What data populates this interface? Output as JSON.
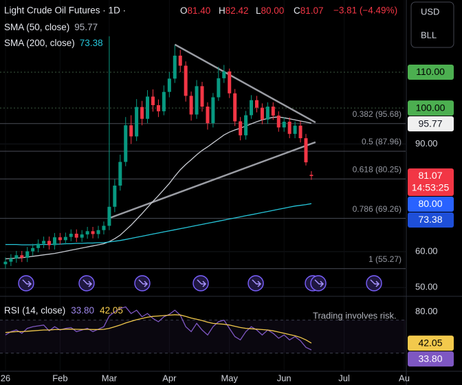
{
  "chart_data": {
    "type": "candlestick",
    "title": "Light Crude Oil Futures · 1D ·",
    "header_values": [
      {
        "key": "O",
        "value": "81.40"
      },
      {
        "key": "H",
        "value": "82.42"
      },
      {
        "key": "L",
        "value": "80.00"
      },
      {
        "key": "C",
        "value": "81.07"
      }
    ],
    "change": "−3.81 (−4.49%)",
    "countdown": "14:53:25",
    "currency_buttons": [
      "USD",
      "BLL"
    ],
    "disclaimer": "Trading involves risk.",
    "x": [
      0,
      1,
      2,
      3,
      4,
      5,
      6,
      7,
      8,
      9,
      10,
      11,
      12,
      13,
      14,
      15,
      16,
      17,
      18,
      19,
      20,
      21,
      22,
      23,
      24,
      25,
      26,
      27,
      28,
      29,
      30,
      31,
      32,
      33,
      34,
      35,
      36,
      37,
      38,
      39,
      40,
      41,
      42,
      43,
      44,
      45,
      46,
      47,
      48,
      49,
      50,
      51,
      52,
      53,
      54,
      55,
      56
    ],
    "xlim": [
      -1,
      73.25
    ],
    "xticks": [
      {
        "value": 0,
        "label": "26"
      },
      {
        "value": 10,
        "label": "Feb"
      },
      {
        "value": 19,
        "label": "Mar"
      },
      {
        "value": 30,
        "label": "Apr"
      },
      {
        "value": 41,
        "label": "May"
      },
      {
        "value": 51,
        "label": "Jun"
      },
      {
        "value": 62,
        "label": "Jul"
      },
      {
        "value": 73,
        "label": "Au"
      }
    ],
    "ylim": [
      47.75,
      130.1
    ],
    "yticks": [
      {
        "value": 50,
        "label": "50.00"
      },
      {
        "value": 60,
        "label": "60.00"
      },
      {
        "value": 90,
        "label": "90.00"
      }
    ],
    "series": [
      {
        "up_color": "#089981",
        "down_color": "#f23645",
        "open": [
          56.5,
          57.2,
          58.1,
          59.0,
          58.3,
          60.1,
          61.0,
          62.2,
          63.0,
          61.8,
          64.0,
          63.2,
          64.1,
          65.0,
          63.9,
          64.8,
          65.7,
          64.9,
          66.0,
          67.2,
          72.5,
          78.4,
          85.0,
          95.2,
          92.1,
          100.3,
          97.0,
          103.2,
          100.8,
          99.1,
          104.5,
          108.2,
          114.6,
          111.8,
          103.4,
          98.2,
          106.1,
          100.4,
          95.8,
          103.0,
          108.3,
          110.2,
          104.1,
          96.3,
          92.4,
          98.0,
          102.2,
          100.1,
          96.8,
          100.4,
          97.9,
          94.6,
          96.2,
          92.8,
          95.1,
          91.6,
          81.4
        ],
        "high": [
          58.4,
          59.3,
          60.2,
          60.2,
          61.3,
          62.2,
          63.4,
          64.2,
          64.2,
          65.2,
          65.2,
          65.3,
          66.2,
          66.2,
          66.0,
          66.9,
          66.9,
          67.2,
          68.4,
          120.0,
          80.2,
          87.0,
          97.5,
          98.0,
          102.5,
          102.0,
          105.0,
          105.2,
          102.4,
          106.3,
          110.0,
          117.5,
          116.2,
          113.0,
          104.6,
          107.8,
          107.3,
          101.6,
          104.2,
          111.5,
          112.0,
          111.0,
          105.3,
          97.5,
          99.2,
          103.6,
          103.4,
          101.3,
          101.6,
          101.6,
          99.1,
          97.4,
          97.4,
          96.3,
          96.3,
          92.8,
          82.42
        ],
        "low": [
          55.3,
          56.0,
          56.9,
          57.1,
          57.1,
          58.9,
          59.8,
          61.0,
          60.6,
          60.6,
          62.0,
          62.0,
          62.9,
          62.7,
          62.7,
          63.6,
          63.7,
          63.7,
          64.8,
          66.0,
          71.0,
          77.0,
          83.8,
          90.0,
          90.8,
          95.2,
          95.8,
          99.0,
          97.5,
          98.0,
          103.0,
          107.0,
          110.0,
          101.8,
          96.5,
          97.0,
          99.0,
          94.0,
          94.6,
          102.0,
          107.0,
          102.8,
          95.0,
          91.0,
          91.2,
          97.0,
          98.8,
          95.5,
          95.6,
          96.7,
          93.4,
          93.4,
          91.6,
          91.6,
          90.4,
          84.0,
          80.0
        ],
        "close": [
          57.2,
          58.1,
          59.0,
          58.3,
          60.1,
          61.0,
          62.2,
          63.0,
          61.8,
          64.0,
          63.2,
          64.1,
          65.0,
          63.9,
          64.8,
          65.7,
          64.9,
          66.0,
          67.2,
          72.5,
          78.4,
          85.0,
          95.2,
          92.1,
          100.3,
          97.0,
          103.2,
          100.8,
          99.1,
          104.5,
          108.2,
          114.6,
          111.8,
          103.4,
          98.2,
          106.1,
          100.4,
          95.8,
          103.0,
          108.3,
          110.2,
          104.1,
          96.3,
          92.4,
          98.0,
          102.2,
          100.1,
          96.8,
          100.4,
          97.9,
          94.6,
          96.2,
          92.8,
          95.1,
          91.6,
          84.88,
          81.07
        ]
      },
      {
        "name": "SMA (50, close)",
        "color": "#c8cbd2",
        "values": [
          58.0,
          58.1,
          58.2,
          58.3,
          58.5,
          58.7,
          58.9,
          59.1,
          59.3,
          59.5,
          59.8,
          60.1,
          60.4,
          60.7,
          61.0,
          61.3,
          61.6,
          61.9,
          62.2,
          62.8,
          63.6,
          64.6,
          66.0,
          67.4,
          69.0,
          70.6,
          72.3,
          74.0,
          75.6,
          77.3,
          79.0,
          81.0,
          82.8,
          84.3,
          85.6,
          87.0,
          88.2,
          89.2,
          90.3,
          91.4,
          92.5,
          93.3,
          93.9,
          94.4,
          95.0,
          95.6,
          96.2,
          96.7,
          97.1,
          97.4,
          97.5,
          97.3,
          97.0,
          96.7,
          96.4,
          96.1,
          95.77
        ]
      },
      {
        "name": "SMA (200, close)",
        "color": "#26c6da",
        "values": [
          62.0,
          62.0,
          62.0,
          61.9,
          61.9,
          61.9,
          62.0,
          62.0,
          62.0,
          62.1,
          62.1,
          62.2,
          62.2,
          62.3,
          62.3,
          62.4,
          62.4,
          62.5,
          62.5,
          62.7,
          62.9,
          63.1,
          63.4,
          63.7,
          64.0,
          64.3,
          64.6,
          64.9,
          65.2,
          65.5,
          65.8,
          66.1,
          66.4,
          66.7,
          67.0,
          67.3,
          67.6,
          67.9,
          68.2,
          68.5,
          68.8,
          69.1,
          69.4,
          69.7,
          70.0,
          70.3,
          70.6,
          70.9,
          71.2,
          71.5,
          71.8,
          72.1,
          72.4,
          72.7,
          72.9,
          73.1,
          73.38
        ]
      }
    ],
    "fib_levels": [
      {
        "label": "0.382 (95.68)",
        "value": 95.68
      },
      {
        "label": "0.5 (87.96)",
        "value": 87.96
      },
      {
        "label": "0.618 (80.25)",
        "value": 80.25
      },
      {
        "label": "0.786 (69.26)",
        "value": 69.26
      },
      {
        "label": "1 (55.27)",
        "value": 55.27
      }
    ],
    "alerts": [
      {
        "value": 110,
        "label": "110.00"
      },
      {
        "value": 100,
        "label": "100.00"
      }
    ],
    "trendlines": [
      {
        "x": [
          31,
          56.75
        ],
        "y": [
          117.7,
          96.0
        ]
      },
      {
        "x": [
          18.75,
          56.75
        ],
        "y": [
          69.2,
          90.5
        ]
      }
    ],
    "rsi": {
      "title": "RSI (14, close)",
      "ylim": [
        8,
        98
      ],
      "yticks": [
        {
          "value": 80,
          "label": "80.00"
        }
      ],
      "bands": [
        70,
        30
      ],
      "series": [
        {
          "color": "#7e57c2",
          "value_label": "33.80",
          "values": [
            52,
            56,
            58,
            54,
            60,
            62,
            63,
            64,
            57,
            62,
            58,
            60,
            61,
            56,
            58,
            60,
            56,
            59,
            62,
            75,
            80,
            84,
            86,
            78,
            82,
            74,
            78,
            72,
            68,
            74,
            77,
            82,
            76,
            62,
            56,
            66,
            58,
            52,
            62,
            68,
            70,
            60,
            50,
            46,
            56,
            62,
            58,
            52,
            58,
            54,
            48,
            52,
            46,
            50,
            45,
            37,
            33.8
          ]
        },
        {
          "color": "#f2c94c",
          "value_label": "42.05",
          "values": [
            55,
            55.5,
            56,
            56,
            56.5,
            57,
            57.5,
            58,
            58,
            58.5,
            58.5,
            59,
            59,
            58.8,
            58.7,
            58.8,
            58.6,
            58.6,
            58.8,
            60,
            62,
            64,
            66.5,
            68.5,
            70.5,
            72,
            73.5,
            74.5,
            75,
            75.5,
            76,
            76.5,
            76.2,
            74.5,
            72.5,
            71,
            69.5,
            67.5,
            66,
            65.5,
            65,
            64,
            62.5,
            61,
            60,
            59.5,
            59,
            58.5,
            58,
            57,
            55.5,
            54,
            52.5,
            51,
            49,
            46,
            42.05
          ]
        }
      ]
    }
  }
}
